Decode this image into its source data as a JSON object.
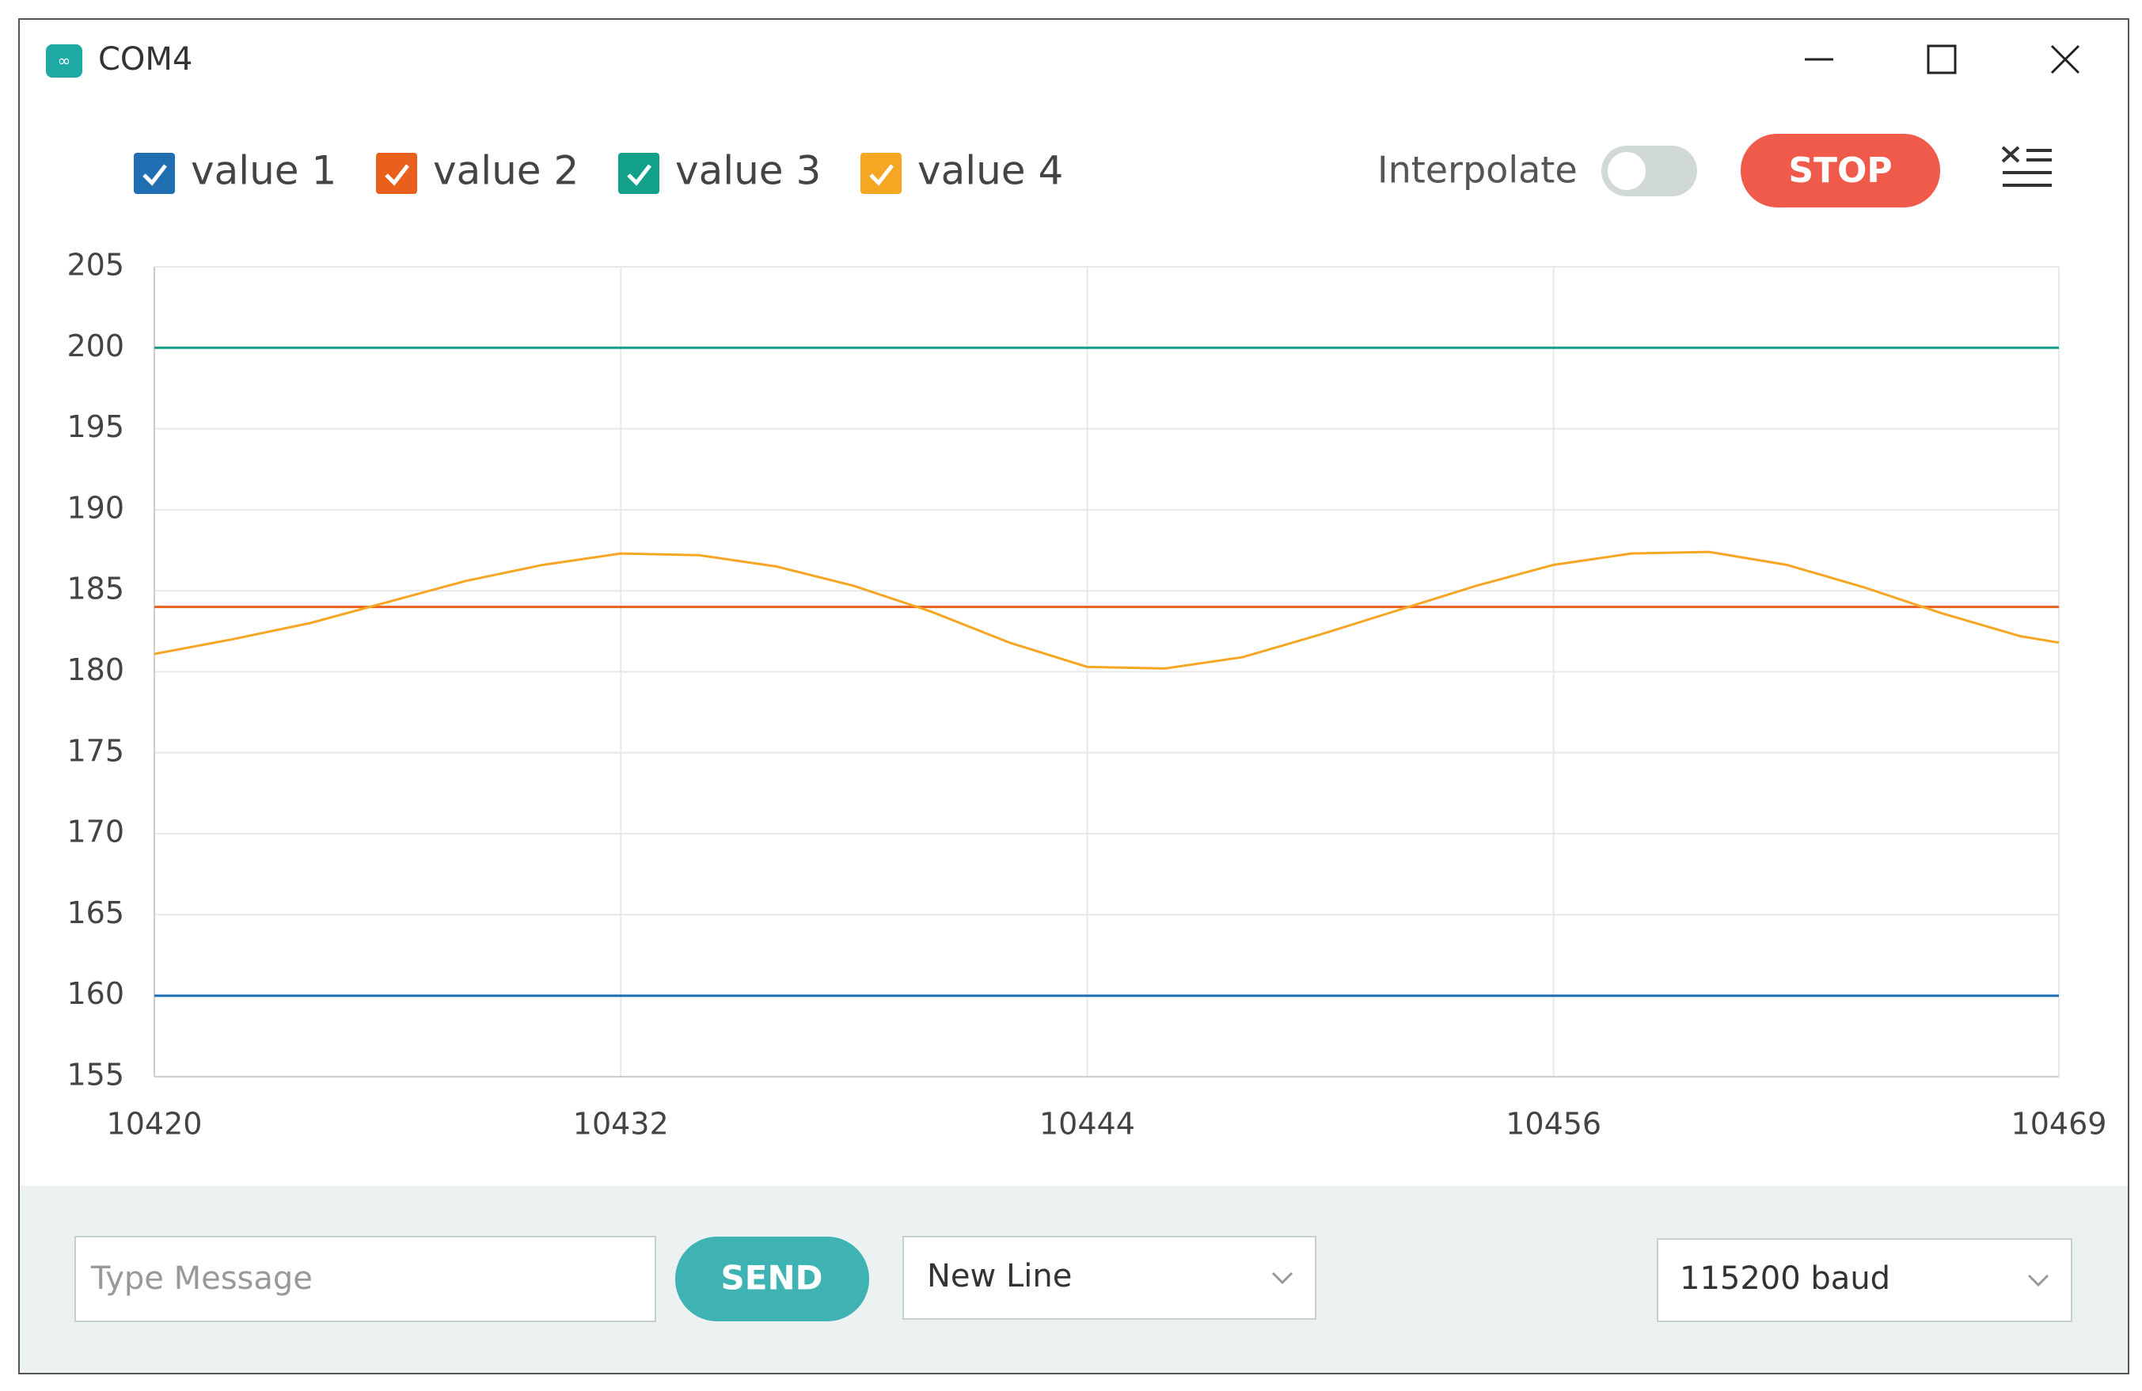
{
  "window": {
    "title": "COM4"
  },
  "controls": {
    "interpolate": "Interpolate",
    "stop": "STOP"
  },
  "chart_data": {
    "type": "line",
    "series": [
      {
        "name": "value 1",
        "color": "#1f6fb2",
        "x": [
          10420,
          10469
        ],
        "values": [
          160,
          160
        ]
      },
      {
        "name": "value 2",
        "color": "#e8601c",
        "x": [
          10420,
          10469
        ],
        "values": [
          184,
          184
        ]
      },
      {
        "name": "value 3",
        "color": "#12a08a",
        "x": [
          10420,
          10469
        ],
        "values": [
          200,
          200
        ]
      },
      {
        "name": "value 4",
        "color": "#f5a623",
        "x": [
          10420,
          10422,
          10424,
          10426,
          10428,
          10430,
          10432,
          10434,
          10436,
          10438,
          10440,
          10442,
          10444,
          10446,
          10448,
          10450,
          10452,
          10454,
          10456,
          10458,
          10460,
          10462,
          10464,
          10466,
          10468,
          10469
        ],
        "values": [
          181.1,
          182.0,
          183.0,
          184.3,
          185.6,
          186.6,
          187.3,
          187.2,
          186.5,
          185.3,
          183.7,
          181.8,
          180.3,
          180.2,
          180.9,
          182.3,
          183.8,
          185.3,
          186.6,
          187.3,
          187.4,
          186.6,
          185.2,
          183.6,
          182.2,
          181.8
        ]
      }
    ],
    "xlim": [
      10420,
      10469
    ],
    "xticks": [
      10420,
      10432,
      10444,
      10456,
      10469
    ],
    "ylim": [
      155,
      205
    ],
    "yticks": [
      155,
      160,
      165,
      170,
      175,
      180,
      185,
      190,
      195,
      200,
      205
    ],
    "grid": true
  },
  "footer": {
    "message_placeholder": "Type Message",
    "send": "SEND",
    "line_ending": "New Line",
    "baud": "115200 baud"
  }
}
